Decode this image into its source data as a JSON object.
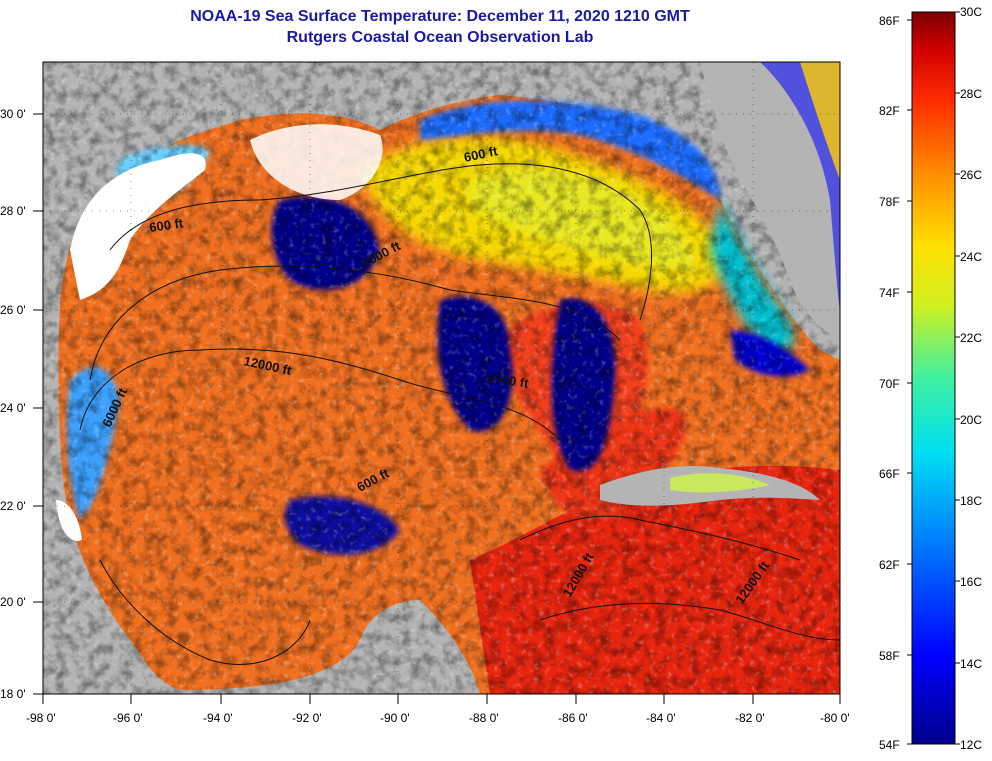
{
  "title": {
    "line1": "NOAA-19 Sea Surface Temperature:  December 11, 2020 1210 GMT",
    "line2": "Rutgers Coastal Ocean Observation Lab"
  },
  "axes": {
    "lon_labels": [
      "-98 0'",
      "-96 0'",
      "-94 0'",
      "-92 0'",
      "-90 0'",
      "-88 0'",
      "-86 0'",
      "-84 0'",
      "-82 0'",
      "-80 0'"
    ],
    "lat_labels": [
      "30 0'",
      "28 0'",
      "26 0'",
      "24 0'",
      "22 0'",
      "20 0'",
      "18 0'"
    ],
    "lon_range": [
      -98,
      -80
    ],
    "lat_range": [
      18,
      31
    ]
  },
  "contour_labels": [
    "600 ft",
    "600 ft",
    "6000 ft",
    "12000 ft",
    "6000 ft",
    "6000 ft",
    "600 ft",
    "12000 ft",
    "12000 ft"
  ],
  "colorbar": {
    "fahrenheit_labels": [
      "86F",
      "82F",
      "78F",
      "74F",
      "70F",
      "66F",
      "62F",
      "58F",
      "54F"
    ],
    "celsius_labels": [
      "30C",
      "28C",
      "26C",
      "24C",
      "22C",
      "20C",
      "18C",
      "16C",
      "14C",
      "12C"
    ],
    "range_c": [
      12,
      30
    ]
  },
  "colors": {
    "land": "#b4b4b4",
    "cloud": "#ffffff",
    "title": "#1a1aa0",
    "warm": "#e8250e",
    "cold": "#00008b"
  }
}
